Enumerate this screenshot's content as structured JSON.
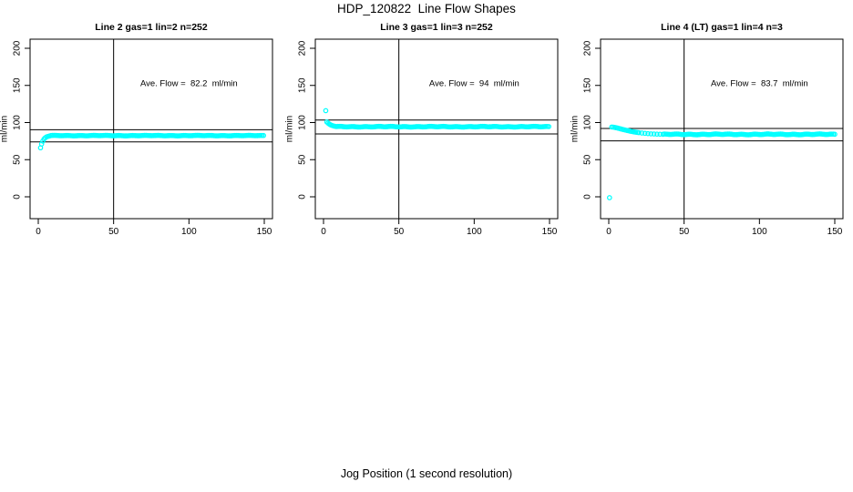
{
  "figure": {
    "title": "HDP_120822  Line Flow Shapes",
    "xlabel": "Jog Position (1 second resolution)",
    "ylabel": "ml/min",
    "colors": {
      "marker": "#00FFFF",
      "axis": "#000000",
      "background": "#FFFFFF"
    }
  },
  "chart_data": [
    {
      "type": "scatter",
      "title": "Line 2 gas=1 lin=2 n=252",
      "annotation": "Ave. Flow =  82.2  ml/min",
      "ave_flow": 82.2,
      "ylabel": "ml/min",
      "x_ticks": [
        0,
        50,
        100,
        150
      ],
      "y_ticks": [
        0,
        50,
        100,
        150,
        200
      ],
      "xlim": [
        -5.5,
        155.5
      ],
      "ylim": [
        -29,
        212
      ],
      "grid": false,
      "vline_x": 50,
      "hlines": [
        90.4,
        74.0
      ],
      "outliers": [
        [
          1.5,
          66
        ]
      ],
      "transient": [
        [
          2.2,
          71
        ],
        [
          3,
          75
        ],
        [
          3.8,
          77.8
        ],
        [
          4.6,
          79.5
        ],
        [
          5.5,
          80.7
        ],
        [
          6.5,
          81.4
        ],
        [
          7.5,
          81.9
        ]
      ],
      "plateau": {
        "from": 8.5,
        "to": 150,
        "step": 1,
        "value": 82.4,
        "wobble": 0.35
      }
    },
    {
      "type": "scatter",
      "title": "Line 3 gas=1 lin=3 n=252",
      "annotation": "Ave. Flow =  94  ml/min",
      "ave_flow": 94,
      "ylabel": "ml/min",
      "x_ticks": [
        0,
        50,
        100,
        150
      ],
      "y_ticks": [
        0,
        50,
        100,
        150,
        200
      ],
      "xlim": [
        -5.5,
        155.5
      ],
      "ylim": [
        -29,
        212
      ],
      "grid": false,
      "vline_x": 50,
      "hlines": [
        103.4,
        84.6
      ],
      "outliers": [
        [
          1.5,
          116
        ]
      ],
      "transient": [
        [
          2.2,
          100.8
        ],
        [
          3,
          99.2
        ],
        [
          3.8,
          98
        ],
        [
          4.6,
          97
        ],
        [
          5.5,
          96.2
        ],
        [
          6.5,
          95.5
        ],
        [
          7.5,
          95
        ]
      ],
      "plateau": {
        "from": 8.5,
        "to": 150,
        "step": 1,
        "value": 94.4,
        "wobble": 0.5
      }
    },
    {
      "type": "scatter",
      "title": "Line 4 (LT) gas=1 lin=4 n=3",
      "annotation": "Ave. Flow =  83.7  ml/min",
      "ave_flow": 83.7,
      "ylabel": "ml/min",
      "x_ticks": [
        0,
        50,
        100,
        150
      ],
      "y_ticks": [
        0,
        50,
        100,
        150,
        200
      ],
      "xlim": [
        -5.5,
        155.5
      ],
      "ylim": [
        -29,
        212
      ],
      "grid": false,
      "vline_x": 50,
      "hlines": [
        92.1,
        75.3
      ],
      "outliers": [
        [
          0.5,
          -1.2
        ]
      ],
      "transient": [
        [
          2,
          94
        ],
        [
          3,
          93.8
        ],
        [
          4,
          93.4
        ],
        [
          5,
          93
        ],
        [
          6,
          92.5
        ],
        [
          7,
          92
        ],
        [
          8,
          91.4
        ],
        [
          9,
          90.9
        ],
        [
          10,
          90.4
        ],
        [
          11,
          89.9
        ],
        [
          12,
          89.4
        ],
        [
          13,
          89
        ],
        [
          14,
          88.5
        ],
        [
          15,
          88.1
        ],
        [
          16,
          87.7
        ],
        [
          17,
          87.3
        ],
        [
          18,
          87
        ],
        [
          19,
          86.7
        ],
        [
          20,
          86.4
        ],
        [
          22,
          85.9
        ],
        [
          24,
          85.5
        ],
        [
          26,
          85.1
        ],
        [
          28,
          84.8
        ],
        [
          30,
          84.6
        ],
        [
          32,
          84.4
        ],
        [
          34,
          84.3
        ],
        [
          36,
          84.2
        ]
      ],
      "plateau": {
        "from": 37,
        "to": 150,
        "step": 1,
        "value": 84.1,
        "wobble": 0.6
      }
    }
  ]
}
